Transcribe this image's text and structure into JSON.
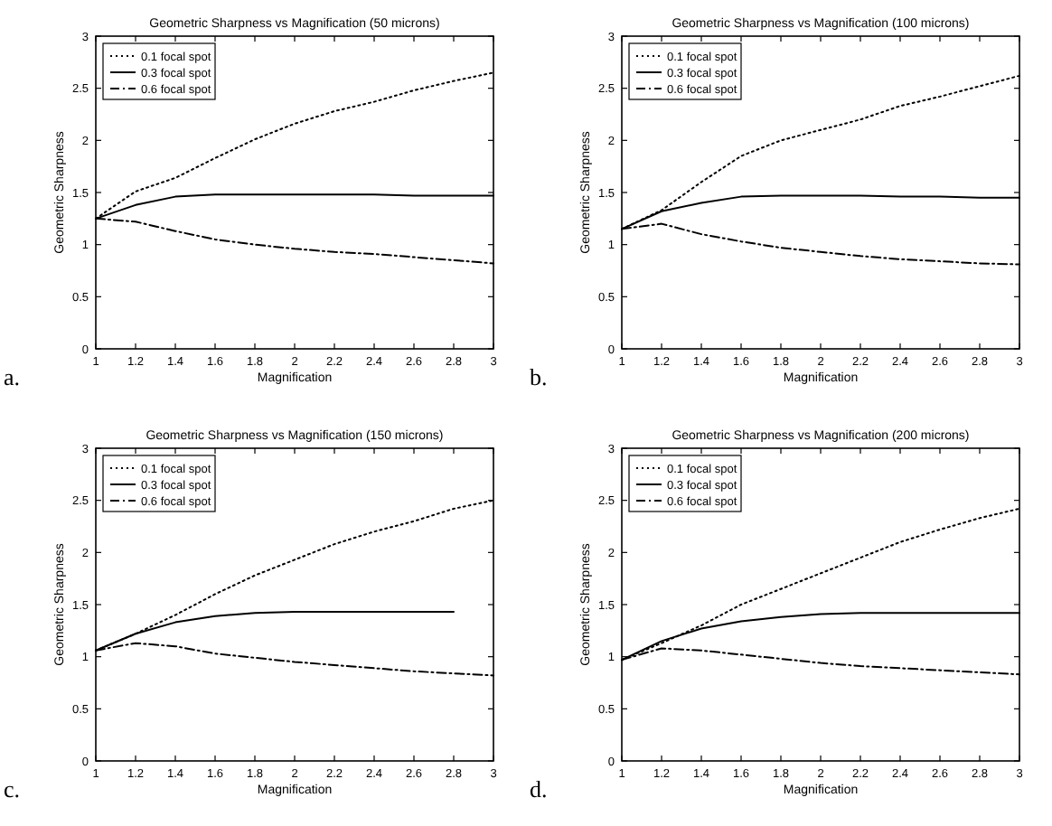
{
  "chart_data": [
    {
      "type": "line",
      "title": "Geometric Sharpness vs Magnification (50 microns)",
      "xlabel": "Magnification",
      "ylabel": "Geometric Sharpness",
      "annotations": [
        "a."
      ],
      "x": [
        1,
        1.2,
        1.4,
        1.6,
        1.8,
        2,
        2.2,
        2.4,
        2.6,
        2.8,
        3
      ],
      "xlim": [
        1,
        3
      ],
      "ylim": [
        0,
        3
      ],
      "xticks": [
        1,
        1.2,
        1.4,
        1.6,
        1.8,
        2,
        2.2,
        2.4,
        2.6,
        2.8,
        3
      ],
      "yticks": [
        0,
        0.5,
        1,
        1.5,
        2,
        2.5,
        3
      ],
      "legend": "top left",
      "grid": false,
      "series": [
        {
          "name": "0.1 focal spot",
          "color": "#000000",
          "line_style": "dotted",
          "values": [
            1.25,
            1.51,
            1.64,
            1.83,
            2.01,
            2.16,
            2.28,
            2.37,
            2.48,
            2.57,
            2.65
          ]
        },
        {
          "name": "0.3 focal spot",
          "color": "#000000",
          "line_style": "solid",
          "values": [
            1.25,
            1.38,
            1.46,
            1.48,
            1.48,
            1.48,
            1.48,
            1.48,
            1.47,
            1.47,
            1.47
          ]
        },
        {
          "name": "0.6 focal spot",
          "color": "#000000",
          "line_style": "dashed",
          "values": [
            1.25,
            1.22,
            1.13,
            1.05,
            1.0,
            0.96,
            0.93,
            0.91,
            0.88,
            0.85,
            0.82
          ]
        }
      ]
    },
    {
      "type": "line",
      "title": "Geometric Sharpness vs Magnification (100 microns)",
      "xlabel": "Magnification",
      "ylabel": "Geometric Sharpness",
      "annotations": [
        "b."
      ],
      "x": [
        1,
        1.2,
        1.4,
        1.6,
        1.8,
        2,
        2.2,
        2.4,
        2.6,
        2.8,
        3
      ],
      "xlim": [
        1,
        3
      ],
      "ylim": [
        0,
        3
      ],
      "xticks": [
        1,
        1.2,
        1.4,
        1.6,
        1.8,
        2,
        2.2,
        2.4,
        2.6,
        2.8,
        3
      ],
      "yticks": [
        0,
        0.5,
        1,
        1.5,
        2,
        2.5,
        3
      ],
      "legend": "top left",
      "grid": false,
      "series": [
        {
          "name": "0.1 focal spot",
          "color": "#000000",
          "line_style": "dotted",
          "values": [
            1.15,
            1.33,
            1.6,
            1.85,
            2.0,
            2.1,
            2.2,
            2.33,
            2.42,
            2.52,
            2.62
          ]
        },
        {
          "name": "0.3 focal spot",
          "color": "#000000",
          "line_style": "solid",
          "values": [
            1.15,
            1.32,
            1.4,
            1.46,
            1.47,
            1.47,
            1.47,
            1.46,
            1.46,
            1.45,
            1.45
          ]
        },
        {
          "name": "0.6 focal spot",
          "color": "#000000",
          "line_style": "dashed",
          "values": [
            1.15,
            1.2,
            1.1,
            1.03,
            0.97,
            0.93,
            0.89,
            0.86,
            0.84,
            0.82,
            0.81
          ]
        }
      ]
    },
    {
      "type": "line",
      "title": "Geometric Sharpness vs Magnification (150 microns)",
      "xlabel": "Magnification",
      "ylabel": "Geometric Sharpness",
      "annotations": [
        "c."
      ],
      "x": [
        1,
        1.2,
        1.4,
        1.6,
        1.8,
        2,
        2.2,
        2.4,
        2.6,
        2.8,
        3
      ],
      "xlim": [
        1,
        3
      ],
      "ylim": [
        0,
        3
      ],
      "xticks": [
        1,
        1.2,
        1.4,
        1.6,
        1.8,
        2,
        2.2,
        2.4,
        2.6,
        2.8,
        3
      ],
      "yticks": [
        0,
        0.5,
        1,
        1.5,
        2,
        2.5,
        3
      ],
      "legend": "top left",
      "grid": false,
      "series": [
        {
          "name": "0.1 focal spot",
          "color": "#000000",
          "line_style": "dotted",
          "values": [
            1.06,
            1.22,
            1.4,
            1.6,
            1.78,
            1.93,
            2.08,
            2.2,
            2.3,
            2.42,
            2.5
          ]
        },
        {
          "name": "0.3 focal spot",
          "color": "#000000",
          "line_style": "solid",
          "values": [
            1.06,
            1.22,
            1.33,
            1.39,
            1.42,
            1.43,
            1.43,
            1.43,
            1.43,
            1.43,
            null
          ]
        },
        {
          "name": "0.6 focal spot",
          "color": "#000000",
          "line_style": "dashed",
          "values": [
            1.06,
            1.13,
            1.1,
            1.03,
            0.99,
            0.95,
            0.92,
            0.89,
            0.86,
            0.84,
            0.82
          ]
        }
      ]
    },
    {
      "type": "line",
      "title": "Geometric Sharpness vs Magnification (200 microns)",
      "xlabel": "Magnification",
      "ylabel": "Geometric Sharpness",
      "annotations": [
        "d."
      ],
      "x": [
        1,
        1.2,
        1.4,
        1.6,
        1.8,
        2,
        2.2,
        2.4,
        2.6,
        2.8,
        3
      ],
      "xlim": [
        1,
        3
      ],
      "ylim": [
        0,
        3
      ],
      "xticks": [
        1,
        1.2,
        1.4,
        1.6,
        1.8,
        2,
        2.2,
        2.4,
        2.6,
        2.8,
        3
      ],
      "yticks": [
        0,
        0.5,
        1,
        1.5,
        2,
        2.5,
        3
      ],
      "legend": "top left",
      "grid": false,
      "series": [
        {
          "name": "0.1 focal spot",
          "color": "#000000",
          "line_style": "dotted",
          "values": [
            0.97,
            1.13,
            1.3,
            1.5,
            1.65,
            1.8,
            1.95,
            2.1,
            2.22,
            2.33,
            2.42
          ]
        },
        {
          "name": "0.3 focal spot",
          "color": "#000000",
          "line_style": "solid",
          "values": [
            0.97,
            1.15,
            1.27,
            1.34,
            1.38,
            1.41,
            1.42,
            1.42,
            1.42,
            1.42,
            1.42
          ]
        },
        {
          "name": "0.6 focal spot",
          "color": "#000000",
          "line_style": "dashed",
          "values": [
            0.97,
            1.08,
            1.06,
            1.02,
            0.98,
            0.94,
            0.91,
            0.89,
            0.87,
            0.85,
            0.83
          ]
        }
      ]
    }
  ]
}
